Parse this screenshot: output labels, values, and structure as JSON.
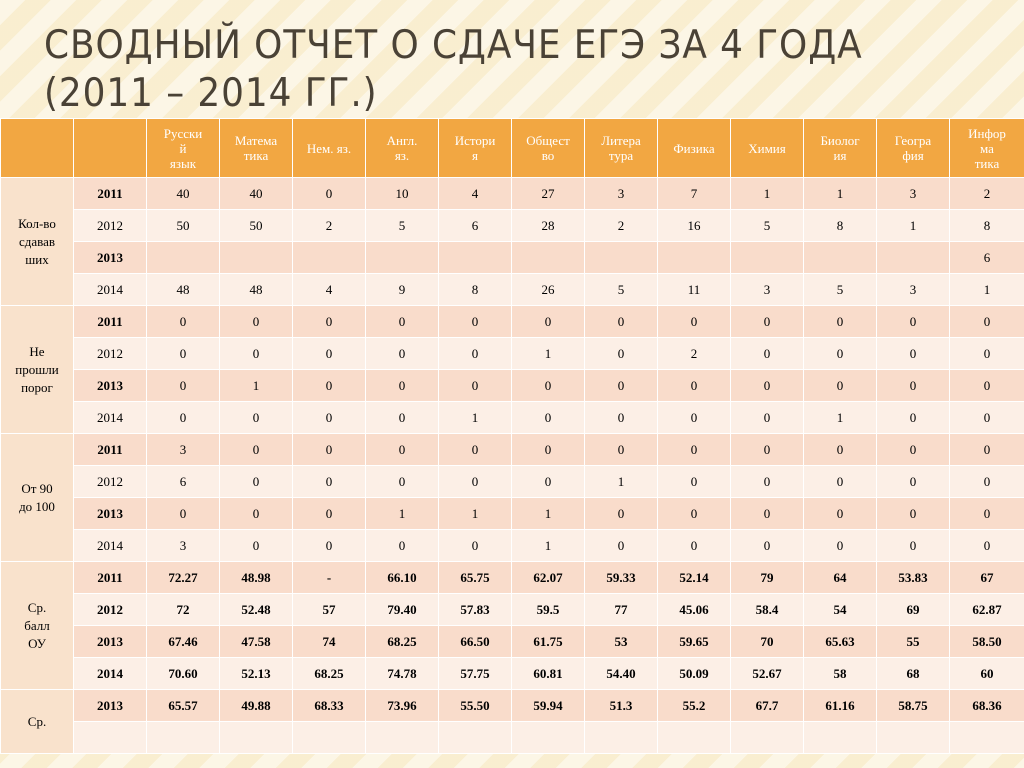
{
  "title": {
    "line1": "Сводный отчет о сдаче ЕГЭ за 4 года",
    "line2": "(2011 – 2014 гг.)"
  },
  "table": {
    "headers": [
      "",
      "",
      "Русский язык",
      "Математика",
      "Нем. яз.",
      "Англ. яз.",
      "История",
      "Общество",
      "Литература",
      "Физика",
      "Химия",
      "Биология",
      "География",
      "Информатика"
    ],
    "header_lines": [
      [],
      [],
      [
        "Русски",
        "й",
        "язык"
      ],
      [
        "Матема",
        "тика"
      ],
      [
        "Нем. яз."
      ],
      [
        "Англ.",
        "яз."
      ],
      [
        "Истори",
        "я"
      ],
      [
        "Общест",
        "во"
      ],
      [
        "Литера",
        "тура"
      ],
      [
        "Физика"
      ],
      [
        "Химия"
      ],
      [
        "Биолог",
        "ия"
      ],
      [
        "Геогра",
        "фия"
      ],
      [
        "Инфор",
        "ма",
        "тика"
      ]
    ],
    "groups": [
      {
        "label": "Кол-во сдававших",
        "label_lines": [
          "Кол-во",
          "сдавав",
          "ших"
        ],
        "rows": [
          {
            "year": "2011",
            "bold_year": true,
            "bold_vals": false,
            "values": [
              "40",
              "40",
              "0",
              "10",
              "4",
              "27",
              "3",
              "7",
              "1",
              "1",
              "3",
              "2"
            ]
          },
          {
            "year": "2012",
            "bold_year": false,
            "bold_vals": false,
            "values": [
              "50",
              "50",
              "2",
              "5",
              "6",
              "28",
              "2",
              "16",
              "5",
              "8",
              "1",
              "8"
            ]
          },
          {
            "year": "2013",
            "bold_year": true,
            "bold_vals": false,
            "values": [
              "",
              "",
              "",
              "",
              "",
              "",
              "",
              "",
              "",
              "",
              "",
              "6"
            ]
          },
          {
            "year": "2014",
            "bold_year": false,
            "bold_vals": false,
            "values": [
              "48",
              "48",
              "4",
              "9",
              "8",
              "26",
              "5",
              "11",
              "3",
              "5",
              "3",
              "1"
            ]
          }
        ]
      },
      {
        "label": "Не прошли порог",
        "label_lines": [
          "Не",
          "прошли",
          "порог"
        ],
        "rows": [
          {
            "year": "2011",
            "bold_year": true,
            "bold_vals": false,
            "values": [
              "0",
              "0",
              "0",
              "0",
              "0",
              "0",
              "0",
              "0",
              "0",
              "0",
              "0",
              "0"
            ]
          },
          {
            "year": "2012",
            "bold_year": false,
            "bold_vals": false,
            "values": [
              "0",
              "0",
              "0",
              "0",
              "0",
              "1",
              "0",
              "2",
              "0",
              "0",
              "0",
              "0"
            ]
          },
          {
            "year": "2013",
            "bold_year": true,
            "bold_vals": false,
            "values": [
              "0",
              "1",
              "0",
              "0",
              "0",
              "0",
              "0",
              "0",
              "0",
              "0",
              "0",
              "0"
            ]
          },
          {
            "year": "2014",
            "bold_year": false,
            "bold_vals": false,
            "values": [
              "0",
              "0",
              "0",
              "0",
              "1",
              "0",
              "0",
              "0",
              "0",
              "1",
              "0",
              "0"
            ]
          }
        ]
      },
      {
        "label": "От 90 до 100",
        "label_lines": [
          "От 90",
          "до 100"
        ],
        "rows": [
          {
            "year": "2011",
            "bold_year": true,
            "bold_vals": false,
            "values": [
              "3",
              "0",
              "0",
              "0",
              "0",
              "0",
              "0",
              "0",
              "0",
              "0",
              "0",
              "0"
            ]
          },
          {
            "year": "2012",
            "bold_year": false,
            "bold_vals": false,
            "values": [
              "6",
              "0",
              "0",
              "0",
              "0",
              "0",
              "1",
              "0",
              "0",
              "0",
              "0",
              "0"
            ]
          },
          {
            "year": "2013",
            "bold_year": true,
            "bold_vals": false,
            "values": [
              "0",
              "0",
              "0",
              "1",
              "1",
              "1",
              "0",
              "0",
              "0",
              "0",
              "0",
              "0"
            ]
          },
          {
            "year": "2014",
            "bold_year": false,
            "bold_vals": false,
            "values": [
              "3",
              "0",
              "0",
              "0",
              "0",
              "1",
              "0",
              "0",
              "0",
              "0",
              "0",
              "0"
            ]
          }
        ]
      },
      {
        "label": "Ср. балл ОУ",
        "label_lines": [
          "Ср.",
          "балл",
          "ОУ"
        ],
        "rows": [
          {
            "year": "2011",
            "bold_year": true,
            "bold_vals": true,
            "values": [
              "72.27",
              "48.98",
              "-",
              "66.10",
              "65.75",
              "62.07",
              "59.33",
              "52.14",
              "79",
              "64",
              "53.83",
              "67"
            ]
          },
          {
            "year": "2012",
            "bold_year": true,
            "bold_vals": true,
            "values": [
              "72",
              "52.48",
              "57",
              "79.40",
              "57.83",
              "59.5",
              "77",
              "45.06",
              "58.4",
              "54",
              "69",
              "62.87"
            ]
          },
          {
            "year": "2013",
            "bold_year": true,
            "bold_vals": true,
            "values": [
              "67.46",
              "47.58",
              "74",
              "68.25",
              "66.50",
              "61.75",
              "53",
              "59.65",
              "70",
              "65.63",
              "55",
              "58.50"
            ]
          },
          {
            "year": "2014",
            "bold_year": true,
            "bold_vals": true,
            "values": [
              "70.60",
              "52.13",
              "68.25",
              "74.78",
              "57.75",
              "60.81",
              "54.40",
              "50.09",
              "52.67",
              "58",
              "68",
              "60"
            ]
          }
        ]
      },
      {
        "label": "Ср.",
        "label_lines": [
          "Ср."
        ],
        "rows": [
          {
            "year": "2013",
            "bold_year": true,
            "bold_vals": true,
            "values": [
              "65.57",
              "49.88",
              "68.33",
              "73.96",
              "55.50",
              "59.94",
              "51.3",
              "55.2",
              "67.7",
              "61.16",
              "58.75",
              "68.36"
            ]
          },
          {
            "year": "",
            "bold_year": false,
            "bold_vals": false,
            "values": [
              "",
              "",
              "",
              "",
              "",
              "",
              "",
              "",
              "",
              "",
              "",
              ""
            ]
          }
        ]
      }
    ]
  }
}
